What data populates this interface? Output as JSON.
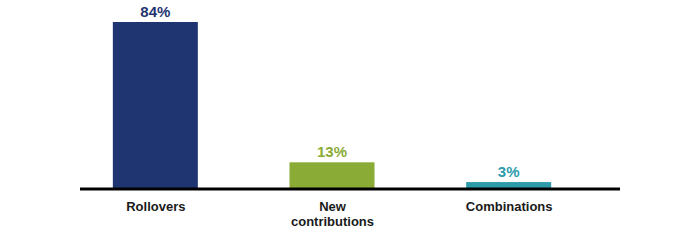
{
  "chart_data": {
    "type": "bar",
    "categories": [
      "Rollovers",
      "New contributions",
      "Combinations"
    ],
    "values": [
      84,
      13,
      3
    ],
    "value_labels": [
      "84%",
      "13%",
      "3%"
    ],
    "colors": [
      "#1f3571",
      "#8aab35",
      "#2e9bab"
    ],
    "data_labels": true,
    "tick_labels": "x",
    "grid": false
  }
}
